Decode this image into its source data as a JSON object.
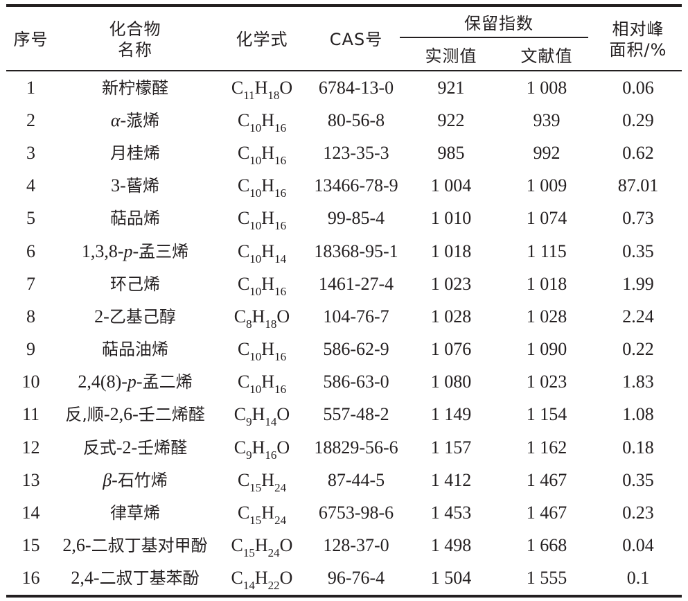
{
  "header": {
    "no": "序号",
    "name_line1": "化合物",
    "name_line2": "名称",
    "formula": "化学式",
    "cas": "CAS号",
    "ri": "保留指数",
    "ri_measured": "实测值",
    "ri_literature": "文献值",
    "area_line1": "相对峰",
    "area_line2": "面积/%"
  },
  "rows": [
    {
      "no": "1",
      "name": [
        {
          "t": "新柠檬醛",
          "k": "cjk"
        }
      ],
      "formula": [
        [
          "C",
          "11"
        ],
        [
          "H",
          "18"
        ],
        [
          "O",
          ""
        ]
      ],
      "cas": "6784-13-0",
      "ri_m": "921",
      "ri_l": "1 008",
      "area": "0.06"
    },
    {
      "no": "2",
      "name": [
        {
          "t": "α",
          "k": "it"
        },
        {
          "t": "-",
          "k": "r"
        },
        {
          "t": "蒎烯",
          "k": "cjk"
        }
      ],
      "formula": [
        [
          "C",
          "10"
        ],
        [
          "H",
          "16"
        ]
      ],
      "cas": "80-56-8",
      "ri_m": "922",
      "ri_l": "939",
      "area": "0.29"
    },
    {
      "no": "3",
      "name": [
        {
          "t": "月桂烯",
          "k": "cjk"
        }
      ],
      "formula": [
        [
          "C",
          "10"
        ],
        [
          "H",
          "16"
        ]
      ],
      "cas": "123-35-3",
      "ri_m": "985",
      "ri_l": "992",
      "area": "0.62"
    },
    {
      "no": "4",
      "name": [
        {
          "t": "3-",
          "k": "r"
        },
        {
          "t": "蒈烯",
          "k": "cjk"
        }
      ],
      "formula": [
        [
          "C",
          "10"
        ],
        [
          "H",
          "16"
        ]
      ],
      "cas": "13466-78-9",
      "ri_m": "1 004",
      "ri_l": "1 009",
      "area": "87.01"
    },
    {
      "no": "5",
      "name": [
        {
          "t": "萜品烯",
          "k": "cjk"
        }
      ],
      "formula": [
        [
          "C",
          "10"
        ],
        [
          "H",
          "16"
        ]
      ],
      "cas": "99-85-4",
      "ri_m": "1 010",
      "ri_l": "1 074",
      "area": "0.73"
    },
    {
      "no": "6",
      "name": [
        {
          "t": "1,3,8-",
          "k": "r"
        },
        {
          "t": "p",
          "k": "it"
        },
        {
          "t": "-",
          "k": "r"
        },
        {
          "t": "孟三烯",
          "k": "cjk"
        }
      ],
      "formula": [
        [
          "C",
          "10"
        ],
        [
          "H",
          "14"
        ]
      ],
      "cas": "18368-95-1",
      "ri_m": "1 018",
      "ri_l": "1 115",
      "area": "0.35"
    },
    {
      "no": "7",
      "name": [
        {
          "t": "环己烯",
          "k": "cjk"
        }
      ],
      "formula": [
        [
          "C",
          "10"
        ],
        [
          "H",
          "16"
        ]
      ],
      "cas": "1461-27-4",
      "ri_m": "1 023",
      "ri_l": "1 018",
      "area": "1.99"
    },
    {
      "no": "8",
      "name": [
        {
          "t": "2-",
          "k": "r"
        },
        {
          "t": "乙基己醇",
          "k": "cjk"
        }
      ],
      "formula": [
        [
          "C",
          "8"
        ],
        [
          "H",
          "18"
        ],
        [
          "O",
          ""
        ]
      ],
      "cas": "104-76-7",
      "ri_m": "1 028",
      "ri_l": "1 028",
      "area": "2.24"
    },
    {
      "no": "9",
      "name": [
        {
          "t": "萜品油烯",
          "k": "cjk"
        }
      ],
      "formula": [
        [
          "C",
          "10"
        ],
        [
          "H",
          "16"
        ]
      ],
      "cas": "586-62-9",
      "ri_m": "1 076",
      "ri_l": "1 090",
      "area": "0.22"
    },
    {
      "no": "10",
      "name": [
        {
          "t": "2,4(8)-",
          "k": "r"
        },
        {
          "t": "p",
          "k": "it"
        },
        {
          "t": "-",
          "k": "r"
        },
        {
          "t": "孟二烯",
          "k": "cjk"
        }
      ],
      "formula": [
        [
          "C",
          "10"
        ],
        [
          "H",
          "16"
        ]
      ],
      "cas": "586-63-0",
      "ri_m": "1 080",
      "ri_l": "1 023",
      "area": "1.83"
    },
    {
      "no": "11",
      "name": [
        {
          "t": "反,顺",
          "k": "cjk"
        },
        {
          "t": "-2,6-",
          "k": "r"
        },
        {
          "t": "壬二烯醛",
          "k": "cjk"
        }
      ],
      "formula": [
        [
          "C",
          "9"
        ],
        [
          "H",
          "14"
        ],
        [
          "O",
          ""
        ]
      ],
      "cas": "557-48-2",
      "ri_m": "1 149",
      "ri_l": "1 154",
      "area": "1.08"
    },
    {
      "no": "12",
      "name": [
        {
          "t": "反式",
          "k": "cjk"
        },
        {
          "t": "-2-",
          "k": "r"
        },
        {
          "t": "壬烯醛",
          "k": "cjk"
        }
      ],
      "formula": [
        [
          "C",
          "9"
        ],
        [
          "H",
          "16"
        ],
        [
          "O",
          ""
        ]
      ],
      "cas": "18829-56-6",
      "ri_m": "1 157",
      "ri_l": "1 162",
      "area": "0.18"
    },
    {
      "no": "13",
      "name": [
        {
          "t": "β",
          "k": "it"
        },
        {
          "t": "-",
          "k": "r"
        },
        {
          "t": "石竹烯",
          "k": "cjk"
        }
      ],
      "formula": [
        [
          "C",
          "15"
        ],
        [
          "H",
          "24"
        ]
      ],
      "cas": "87-44-5",
      "ri_m": "1 412",
      "ri_l": "1 467",
      "area": "0.35"
    },
    {
      "no": "14",
      "name": [
        {
          "t": "律草烯",
          "k": "cjk"
        }
      ],
      "formula": [
        [
          "C",
          "15"
        ],
        [
          "H",
          "24"
        ]
      ],
      "cas": "6753-98-6",
      "ri_m": "1 453",
      "ri_l": "1 467",
      "area": "0.23"
    },
    {
      "no": "15",
      "name": [
        {
          "t": "2,6-",
          "k": "r"
        },
        {
          "t": "二叔丁基对甲酚",
          "k": "cjk"
        }
      ],
      "formula": [
        [
          "C",
          "15"
        ],
        [
          "H",
          "24"
        ],
        [
          "O",
          ""
        ]
      ],
      "cas": "128-37-0",
      "ri_m": "1 498",
      "ri_l": "1 668",
      "area": "0.04"
    },
    {
      "no": "16",
      "name": [
        {
          "t": "2,4-",
          "k": "r"
        },
        {
          "t": "二叔丁基苯酚",
          "k": "cjk"
        }
      ],
      "formula": [
        [
          "C",
          "14"
        ],
        [
          "H",
          "22"
        ],
        [
          "O",
          ""
        ]
      ],
      "cas": "96-76-4",
      "ri_m": "1 504",
      "ri_l": "1 555",
      "area": "0.1"
    }
  ]
}
